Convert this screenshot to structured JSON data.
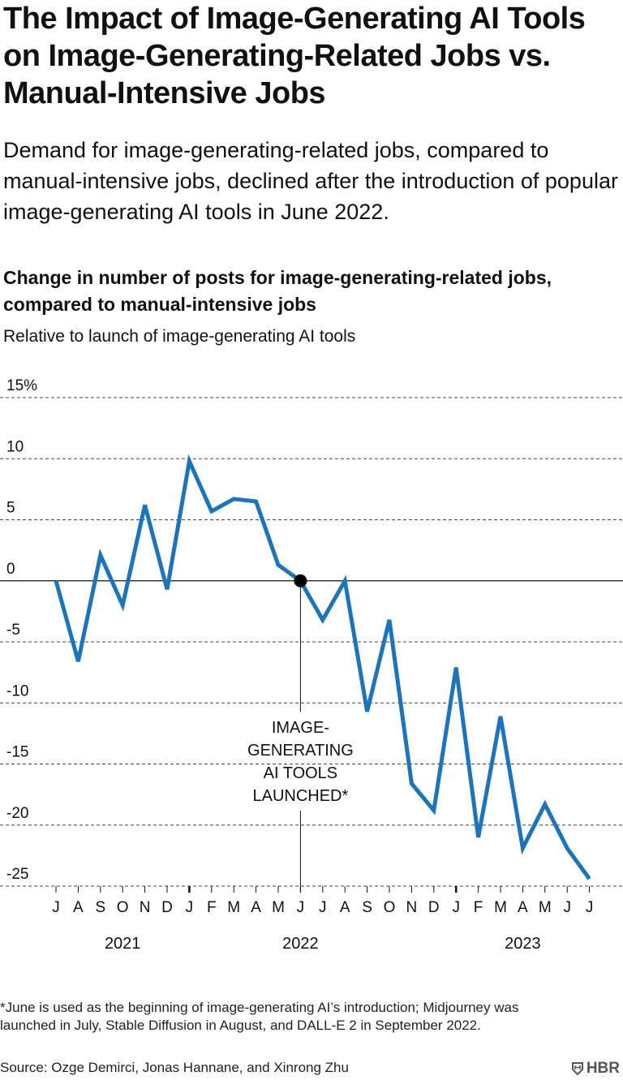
{
  "header": {
    "title": "The Impact of Image-Generating AI Tools on Image-Generating-Related Jobs vs. Manual-Intensive Jobs",
    "dek": "Demand for image-generating-related jobs, compared to manual-intensive jobs, declined after the introduction of popular image-generating AI tools in June 2022."
  },
  "chart_data": {
    "type": "line",
    "title": "Change in number of posts for image-generating-related jobs, compared to manual-intensive jobs",
    "subtitle": "Relative to launch of image-generating AI tools",
    "x": [
      "J",
      "A",
      "S",
      "O",
      "N",
      "D",
      "J",
      "F",
      "M",
      "A",
      "M",
      "J",
      "J",
      "A",
      "S",
      "O",
      "N",
      "D",
      "J",
      "F",
      "M",
      "A",
      "M",
      "J",
      "J"
    ],
    "years": [
      {
        "label": "2021",
        "index": 3
      },
      {
        "label": "2022",
        "index": 11
      },
      {
        "label": "2023",
        "index": 21
      }
    ],
    "year_start_indices": [
      6,
      18
    ],
    "values": [
      0,
      -6.6,
      2.1,
      -2,
      6.2,
      -0.7,
      9.8,
      5.7,
      6.7,
      6.5,
      1.3,
      0,
      -3.2,
      0,
      -10.7,
      -3.2,
      -16.6,
      -18.8,
      -7.1,
      -21,
      -11.1,
      -21.9,
      -18.3,
      -21.9,
      -24.4
    ],
    "yticks": [
      15,
      10,
      5,
      0,
      -5,
      -10,
      -15,
      -20,
      -25
    ],
    "ytick_labels": [
      "15%",
      "10",
      "5",
      "0",
      "-5",
      "-10",
      "-15",
      "-20",
      "-25"
    ],
    "ylim": [
      -25,
      15
    ],
    "grid": true,
    "line_color": "#1a75bc",
    "annotation": {
      "index": 11,
      "lines": [
        "IMAGE-",
        "GENERATING",
        "AI TOOLS",
        "LAUNCHED*"
      ]
    }
  },
  "footer": {
    "footnote": "*June is used as the beginning of image-generating AI’s introduction; Midjourney was launched in July, Stable Diffusion in August, and DALL-E 2 in September 2022.",
    "source": "Source: Ozge Demirci, Jonas Hannane, and Xinrong Zhu",
    "logo": "HBR"
  }
}
